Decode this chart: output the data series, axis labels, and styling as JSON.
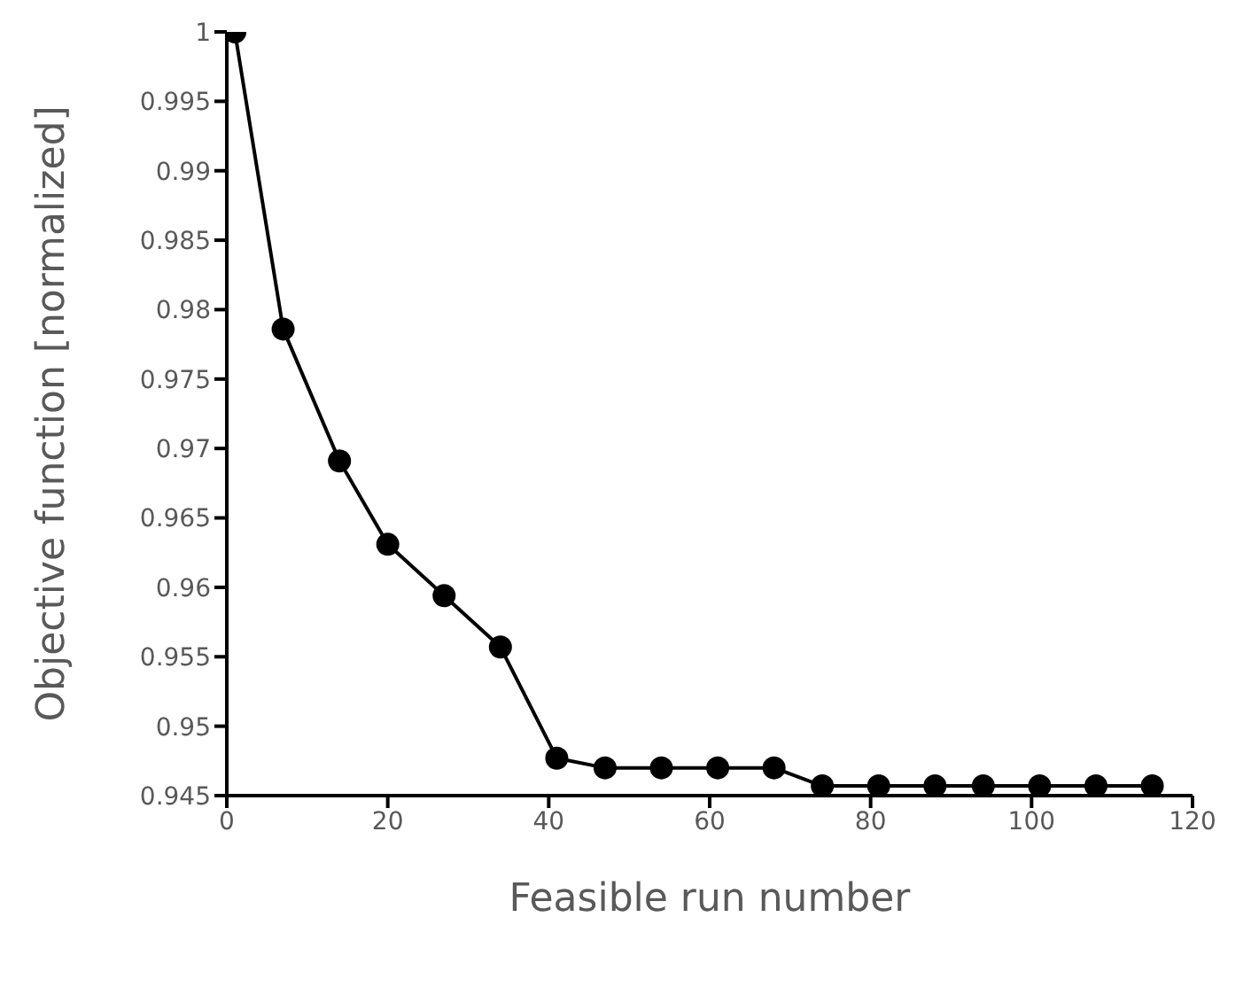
{
  "chart_data": {
    "type": "line",
    "xlabel": "Feasible run number",
    "ylabel": "Objective function [normalized]",
    "x": [
      1,
      7,
      14,
      20,
      27,
      34,
      41,
      47,
      54,
      61,
      68,
      74,
      81,
      88,
      94,
      101,
      108,
      115
    ],
    "series": [
      {
        "color": "#000000",
        "values": [
          1.0,
          0.9786,
          0.9691,
          0.9631,
          0.9594,
          0.9557,
          0.9477,
          0.947,
          0.947,
          0.947,
          0.947,
          0.9457,
          0.9457,
          0.9457,
          0.9457,
          0.9457,
          0.9457,
          0.9457
        ]
      }
    ],
    "xlim": [
      0,
      120
    ],
    "xticks": [
      0,
      20,
      40,
      60,
      80,
      100,
      120
    ],
    "ylim": [
      0.945,
      1
    ],
    "yticks": [
      0.945,
      0.95,
      0.955,
      0.96,
      0.965,
      0.97,
      0.975,
      0.98,
      0.985,
      0.99,
      0.995,
      1
    ],
    "grid": false,
    "marker": "circle",
    "line_style": "solid"
  }
}
